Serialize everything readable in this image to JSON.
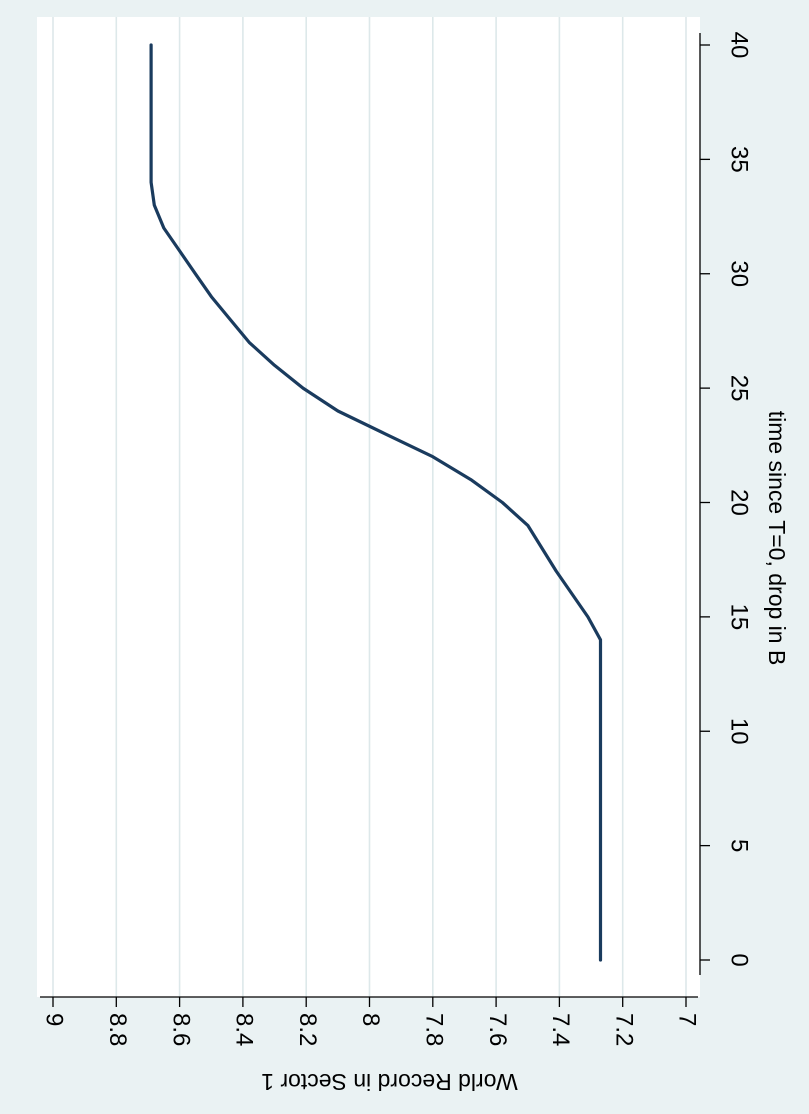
{
  "chart_data": {
    "type": "line",
    "orientation": "rotated 90 degrees clockwise",
    "title": "",
    "xlabel": "time since T=0, drop in B",
    "ylabel": "World Record in Sector 1",
    "xlim": [
      0,
      40
    ],
    "ylim": [
      7,
      9
    ],
    "x_ticks": [
      0,
      5,
      10,
      15,
      20,
      25,
      30,
      35,
      40
    ],
    "y_ticks": [
      7,
      7.2,
      7.4,
      7.6,
      7.8,
      8,
      8.2,
      8.4,
      8.6,
      8.8,
      9
    ],
    "y_tick_labels": [
      "7",
      "7.2",
      "7.4",
      "7.6",
      "7.8",
      "8",
      "8.2",
      "8.4",
      "8.6",
      "8.8",
      "9"
    ],
    "grid": "horizontal gridlines at y ticks",
    "legend": "none",
    "series": [
      {
        "color": "#1a3b5e",
        "points": [
          [
            0,
            7.27
          ],
          [
            14,
            7.27
          ],
          [
            15,
            7.31
          ],
          [
            17,
            7.41
          ],
          [
            19,
            7.5
          ],
          [
            20,
            7.58
          ],
          [
            21,
            7.68
          ],
          [
            22,
            7.8
          ],
          [
            23,
            7.95
          ],
          [
            24,
            8.1
          ],
          [
            25,
            8.21
          ],
          [
            26,
            8.3
          ],
          [
            27,
            8.38
          ],
          [
            28,
            8.44
          ],
          [
            29,
            8.5
          ],
          [
            30,
            8.55
          ],
          [
            31,
            8.6
          ],
          [
            32,
            8.65
          ],
          [
            33,
            8.68
          ],
          [
            34,
            8.69
          ],
          [
            40,
            8.69
          ]
        ]
      }
    ]
  },
  "colors": {
    "background": "#eaf2f3",
    "plot_background": "#ffffff",
    "gridline": "#dde8ea",
    "line": "#1a3b5e"
  }
}
